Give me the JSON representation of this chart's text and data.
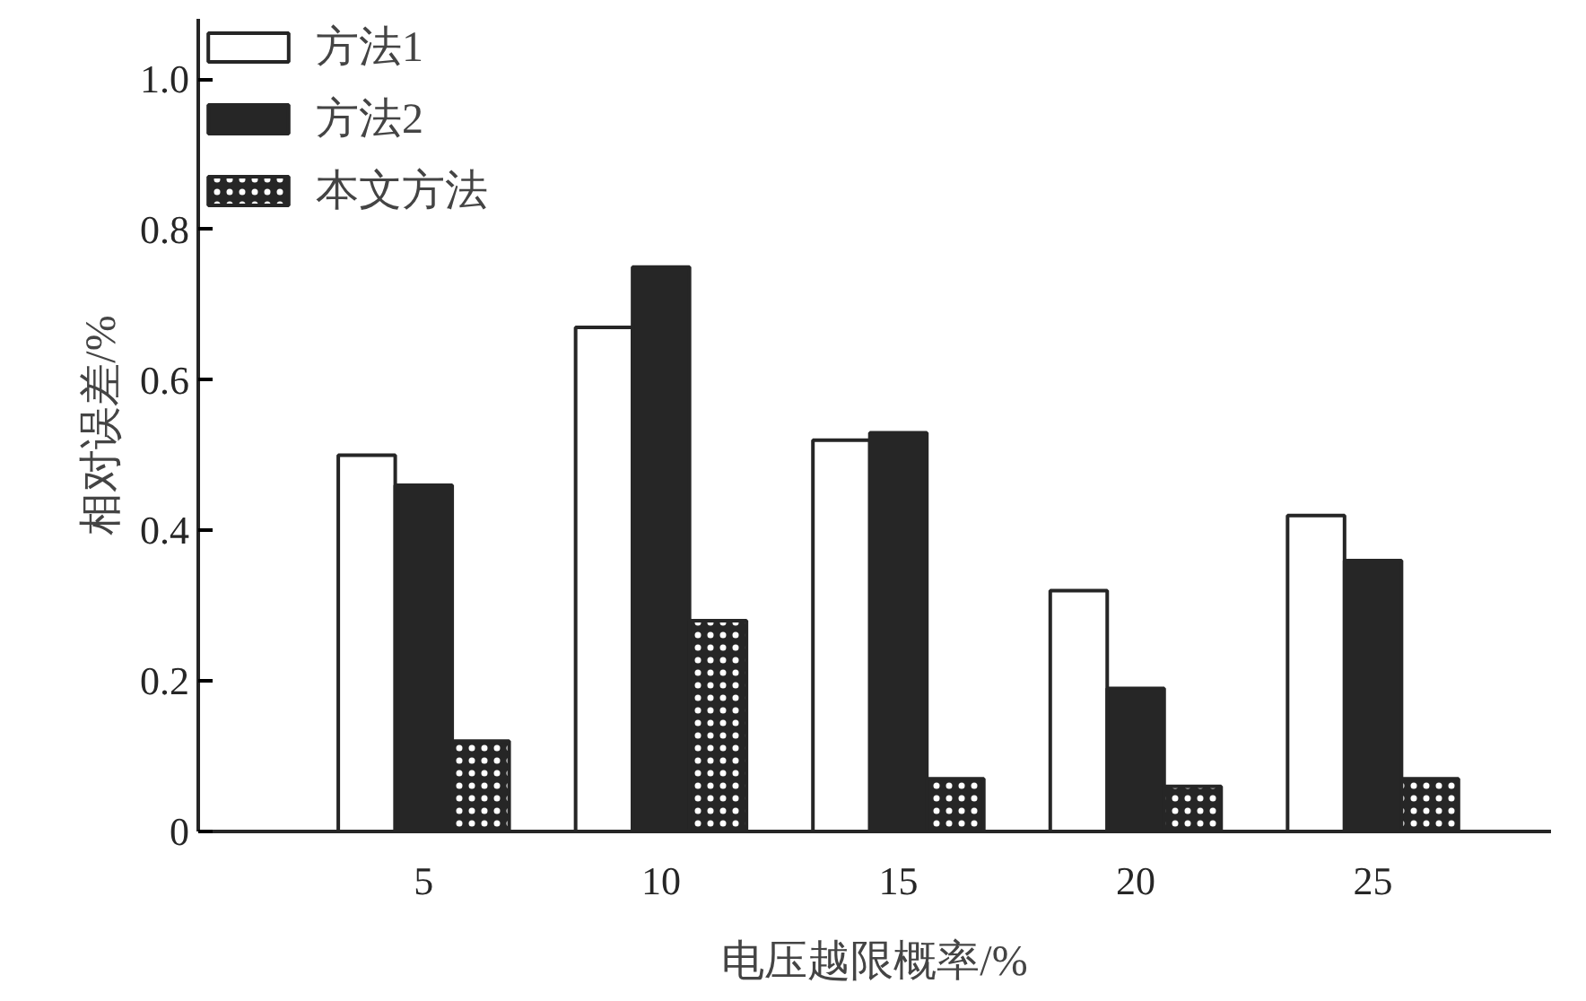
{
  "chart_data": {
    "type": "bar",
    "xlabel": "电压越限概率/%",
    "ylabel": "相对误差/%",
    "categories": [
      "5",
      "10",
      "15",
      "20",
      "25"
    ],
    "series": [
      {
        "name": "方法1",
        "color": "#ffffff",
        "values": [
          0.5,
          0.67,
          0.52,
          0.32,
          0.42
        ]
      },
      {
        "name": "方法2",
        "color": "#262626",
        "values": [
          0.46,
          0.75,
          0.53,
          0.19,
          0.36
        ]
      },
      {
        "name": "本文方法",
        "color": "#262626",
        "values": [
          0.12,
          0.28,
          0.07,
          0.06,
          0.07
        ]
      }
    ],
    "ylim": [
      0,
      1.08
    ],
    "yticks": [
      0,
      0.2,
      0.4,
      0.6,
      0.8,
      {
        "value": 1,
        "label": "1.0"
      }
    ],
    "legend": "top left",
    "grid": false
  }
}
